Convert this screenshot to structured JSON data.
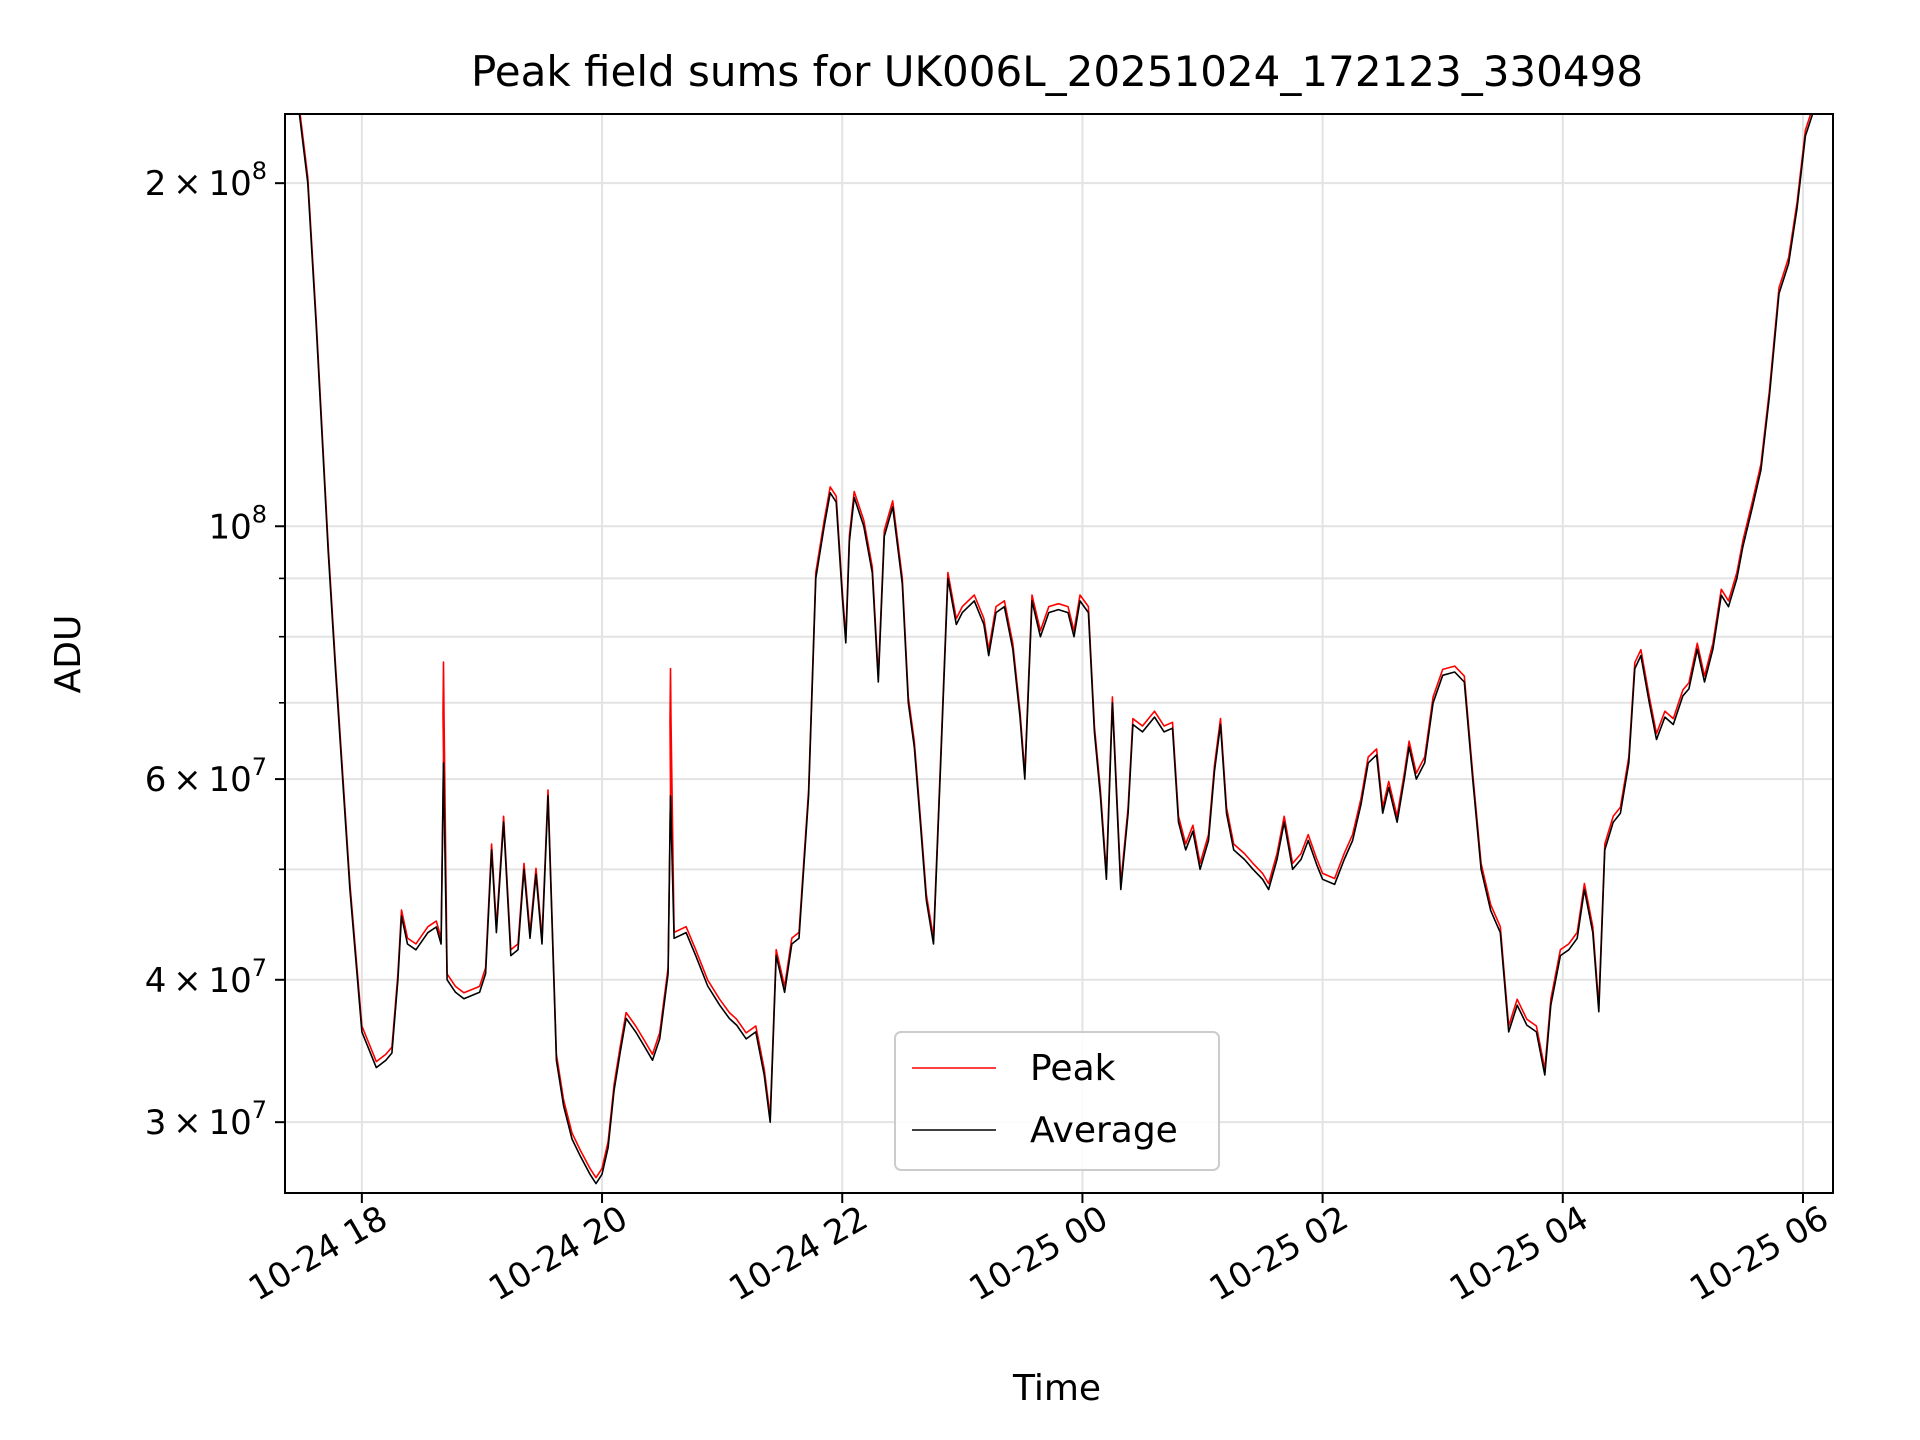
{
  "chart_data": {
    "type": "line",
    "title": "Peak field sums for UK006L_20251024_172123_330498",
    "xlabel": "Time",
    "ylabel": "ADU",
    "yscale": "log",
    "ylim": [
      26000000,
      230000000
    ],
    "xlim_hours": [
      -0.64,
      12.25
    ],
    "grid": true,
    "x_ticks": [
      {
        "label": "10-24 18",
        "hours": 0
      },
      {
        "label": "10-24 20",
        "hours": 2
      },
      {
        "label": "10-24 22",
        "hours": 4
      },
      {
        "label": "10-25 00",
        "hours": 6
      },
      {
        "label": "10-25 02",
        "hours": 8
      },
      {
        "label": "10-25 04",
        "hours": 10
      },
      {
        "label": "10-25 06",
        "hours": 12
      }
    ],
    "y_ticks": [
      {
        "mantissa": "3",
        "exponent": "7",
        "value": 30000000
      },
      {
        "mantissa": "4",
        "exponent": "7",
        "value": 40000000
      },
      {
        "mantissa": "6",
        "exponent": "7",
        "value": 60000000
      },
      {
        "mantissa": "",
        "exponent": "8",
        "value": 100000000
      },
      {
        "mantissa": "2",
        "exponent": "8",
        "value": 200000000
      }
    ],
    "y_minor_ticks": [
      50000000,
      70000000,
      80000000,
      90000000
    ],
    "legend": {
      "position": "lower-center",
      "entries": [
        "Peak",
        "Average"
      ]
    },
    "series": [
      {
        "name": "Average",
        "color": "#000000",
        "points": [
          [
            -0.52,
            230000000
          ],
          [
            -0.45,
            200000000
          ],
          [
            -0.38,
            150000000
          ],
          [
            -0.28,
            95000000
          ],
          [
            -0.22,
            75000000
          ],
          [
            -0.1,
            48000000
          ],
          [
            0.0,
            36000000
          ],
          [
            0.12,
            33500000
          ],
          [
            0.2,
            34000000
          ],
          [
            0.25,
            34500000
          ],
          [
            0.3,
            40000000
          ],
          [
            0.33,
            45500000
          ],
          [
            0.38,
            43000000
          ],
          [
            0.45,
            42500000
          ],
          [
            0.55,
            44000000
          ],
          [
            0.62,
            44500000
          ],
          [
            0.66,
            43000000
          ],
          [
            0.68,
            62000000
          ],
          [
            0.71,
            40000000
          ],
          [
            0.78,
            39000000
          ],
          [
            0.85,
            38500000
          ],
          [
            0.98,
            39000000
          ],
          [
            1.03,
            40500000
          ],
          [
            1.08,
            52000000
          ],
          [
            1.12,
            44000000
          ],
          [
            1.18,
            55000000
          ],
          [
            1.24,
            42000000
          ],
          [
            1.3,
            42500000
          ],
          [
            1.35,
            50000000
          ],
          [
            1.4,
            43500000
          ],
          [
            1.45,
            49500000
          ],
          [
            1.5,
            43000000
          ],
          [
            1.55,
            58000000
          ],
          [
            1.62,
            34000000
          ],
          [
            1.68,
            31000000
          ],
          [
            1.75,
            29000000
          ],
          [
            1.82,
            28000000
          ],
          [
            1.9,
            27000000
          ],
          [
            1.95,
            26500000
          ],
          [
            2.0,
            27000000
          ],
          [
            2.05,
            28500000
          ],
          [
            2.1,
            32000000
          ],
          [
            2.15,
            34500000
          ],
          [
            2.2,
            37000000
          ],
          [
            2.28,
            36000000
          ],
          [
            2.35,
            35000000
          ],
          [
            2.42,
            34000000
          ],
          [
            2.48,
            35500000
          ],
          [
            2.55,
            40500000
          ],
          [
            2.57,
            58000000
          ],
          [
            2.6,
            43500000
          ],
          [
            2.7,
            44000000
          ],
          [
            2.78,
            42000000
          ],
          [
            2.88,
            39500000
          ],
          [
            2.98,
            38000000
          ],
          [
            3.06,
            37000000
          ],
          [
            3.12,
            36500000
          ],
          [
            3.2,
            35500000
          ],
          [
            3.28,
            36000000
          ],
          [
            3.35,
            33000000
          ],
          [
            3.4,
            30000000
          ],
          [
            3.45,
            42000000
          ],
          [
            3.52,
            39000000
          ],
          [
            3.58,
            43000000
          ],
          [
            3.64,
            43500000
          ],
          [
            3.72,
            58000000
          ],
          [
            3.78,
            90000000
          ],
          [
            3.85,
            100000000
          ],
          [
            3.9,
            107000000
          ],
          [
            3.95,
            105000000
          ],
          [
            4.0,
            87000000
          ],
          [
            4.03,
            79000000
          ],
          [
            4.06,
            97000000
          ],
          [
            4.1,
            106000000
          ],
          [
            4.18,
            100000000
          ],
          [
            4.25,
            91000000
          ],
          [
            4.3,
            73000000
          ],
          [
            4.35,
            98000000
          ],
          [
            4.42,
            104000000
          ],
          [
            4.5,
            89000000
          ],
          [
            4.55,
            70000000
          ],
          [
            4.6,
            64000000
          ],
          [
            4.65,
            55000000
          ],
          [
            4.7,
            47000000
          ],
          [
            4.76,
            43000000
          ],
          [
            4.82,
            62000000
          ],
          [
            4.88,
            90000000
          ],
          [
            4.95,
            82000000
          ],
          [
            5.0,
            84000000
          ],
          [
            5.1,
            86000000
          ],
          [
            5.18,
            82000000
          ],
          [
            5.22,
            77000000
          ],
          [
            5.28,
            84000000
          ],
          [
            5.35,
            85000000
          ],
          [
            5.42,
            78000000
          ],
          [
            5.48,
            68000000
          ],
          [
            5.52,
            60000000
          ],
          [
            5.58,
            86000000
          ],
          [
            5.65,
            80000000
          ],
          [
            5.72,
            84000000
          ],
          [
            5.8,
            84500000
          ],
          [
            5.88,
            84000000
          ],
          [
            5.93,
            80000000
          ],
          [
            5.98,
            86000000
          ],
          [
            6.05,
            84000000
          ],
          [
            6.1,
            66000000
          ],
          [
            6.15,
            58000000
          ],
          [
            6.2,
            49000000
          ],
          [
            6.25,
            70000000
          ],
          [
            6.32,
            48000000
          ],
          [
            6.38,
            56000000
          ],
          [
            6.42,
            67000000
          ],
          [
            6.5,
            66000000
          ],
          [
            6.6,
            68000000
          ],
          [
            6.68,
            66000000
          ],
          [
            6.75,
            66500000
          ],
          [
            6.8,
            55000000
          ],
          [
            6.86,
            52000000
          ],
          [
            6.92,
            54000000
          ],
          [
            6.98,
            50000000
          ],
          [
            7.05,
            53000000
          ],
          [
            7.1,
            61000000
          ],
          [
            7.15,
            67000000
          ],
          [
            7.2,
            56000000
          ],
          [
            7.26,
            52000000
          ],
          [
            7.35,
            51000000
          ],
          [
            7.42,
            50000000
          ],
          [
            7.5,
            49000000
          ],
          [
            7.55,
            48000000
          ],
          [
            7.62,
            51000000
          ],
          [
            7.68,
            55000000
          ],
          [
            7.75,
            50000000
          ],
          [
            7.82,
            51000000
          ],
          [
            7.88,
            53000000
          ],
          [
            7.95,
            50500000
          ],
          [
            8.0,
            49000000
          ],
          [
            8.1,
            48500000
          ],
          [
            8.18,
            51000000
          ],
          [
            8.25,
            53000000
          ],
          [
            8.32,
            57000000
          ],
          [
            8.38,
            62000000
          ],
          [
            8.45,
            63000000
          ],
          [
            8.5,
            56000000
          ],
          [
            8.55,
            59000000
          ],
          [
            8.62,
            55000000
          ],
          [
            8.68,
            60000000
          ],
          [
            8.72,
            64000000
          ],
          [
            8.78,
            60000000
          ],
          [
            8.85,
            62000000
          ],
          [
            8.92,
            70000000
          ],
          [
            9.0,
            74000000
          ],
          [
            9.1,
            74500000
          ],
          [
            9.18,
            73000000
          ],
          [
            9.25,
            60000000
          ],
          [
            9.32,
            50000000
          ],
          [
            9.4,
            46000000
          ],
          [
            9.48,
            44000000
          ],
          [
            9.55,
            36000000
          ],
          [
            9.62,
            38000000
          ],
          [
            9.7,
            36500000
          ],
          [
            9.78,
            36000000
          ],
          [
            9.85,
            33000000
          ],
          [
            9.9,
            38000000
          ],
          [
            9.98,
            42000000
          ],
          [
            10.05,
            42500000
          ],
          [
            10.12,
            43500000
          ],
          [
            10.18,
            48000000
          ],
          [
            10.25,
            44000000
          ],
          [
            10.3,
            37500000
          ],
          [
            10.35,
            52000000
          ],
          [
            10.42,
            55000000
          ],
          [
            10.48,
            56000000
          ],
          [
            10.55,
            62000000
          ],
          [
            10.6,
            75000000
          ],
          [
            10.65,
            77000000
          ],
          [
            10.72,
            70000000
          ],
          [
            10.78,
            65000000
          ],
          [
            10.85,
            68000000
          ],
          [
            10.92,
            67000000
          ],
          [
            11.0,
            71000000
          ],
          [
            11.05,
            72000000
          ],
          [
            11.12,
            78000000
          ],
          [
            11.18,
            73000000
          ],
          [
            11.25,
            78000000
          ],
          [
            11.32,
            87000000
          ],
          [
            11.38,
            85000000
          ],
          [
            11.45,
            90000000
          ],
          [
            11.5,
            96000000
          ],
          [
            11.58,
            104000000
          ],
          [
            11.65,
            112000000
          ],
          [
            11.72,
            130000000
          ],
          [
            11.8,
            160000000
          ],
          [
            11.88,
            170000000
          ],
          [
            11.95,
            190000000
          ],
          [
            12.02,
            220000000
          ],
          [
            12.08,
            230000000
          ]
        ]
      }
    ]
  }
}
